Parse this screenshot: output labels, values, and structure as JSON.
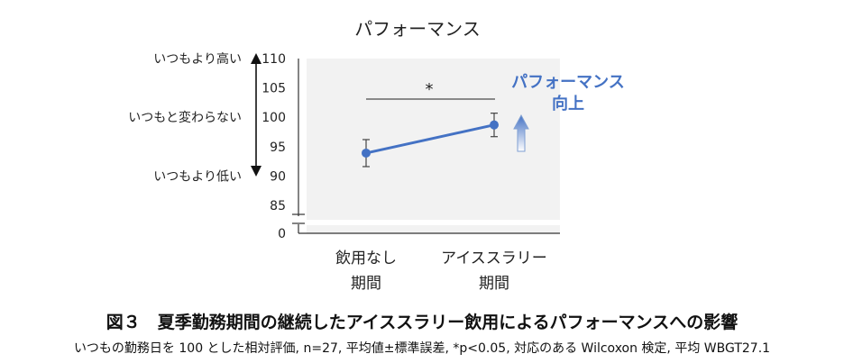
{
  "chart_data": {
    "type": "line",
    "title": "パフォーマンス",
    "categories": [
      "飲用なし\n期間",
      "アイススラリー\n期間"
    ],
    "series": [
      {
        "values": [
          93.9,
          98.7
        ],
        "error": [
          2.3,
          2.0
        ]
      }
    ],
    "ylim": [
      0,
      110
    ],
    "yaxis_break": [
      0,
      85
    ],
    "yticks": [
      0,
      85,
      90,
      95,
      100,
      105,
      110
    ],
    "y_annotations": [
      "いつもより高い",
      "いつもと変わらない",
      "いつもより低い"
    ],
    "significance": "*",
    "highlight": {
      "text": "パフォーマンス\n向上",
      "color": "#4472C4"
    },
    "series_color": "#4472C4",
    "grid": false,
    "plot_background": "#f2f2f2"
  },
  "caption": {
    "title": "図３　夏季勤務期間の継続したアイススラリー飲用によるパフォーマンスへの影響",
    "note": "いつもの勤務日を 100 とした相対評価, n=27, 平均値±標準誤差, *p<0.05, 対応のある Wilcoxon 検定, 平均 WBGT27.1"
  }
}
